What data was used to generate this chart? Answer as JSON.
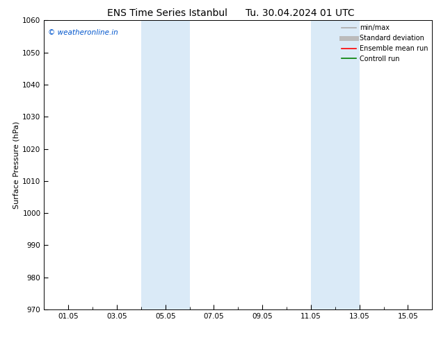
{
  "title_left": "ENS Time Series Istanbul",
  "title_right": "Tu. 30.04.2024 01 UTC",
  "ylabel": "Surface Pressure (hPa)",
  "ylim": [
    970,
    1060
  ],
  "yticks": [
    970,
    980,
    990,
    1000,
    1010,
    1020,
    1030,
    1040,
    1050,
    1060
  ],
  "shaded_regions": [
    {
      "xmin_day": 4.0,
      "xmax_day": 6.0
    },
    {
      "xmin_day": 11.0,
      "xmax_day": 13.0
    }
  ],
  "shaded_color": "#daeaf7",
  "background_color": "#ffffff",
  "watermark_text": "© weatheronline.in",
  "watermark_color": "#0055cc",
  "legend_entries": [
    {
      "label": "min/max",
      "color": "#aaaaaa",
      "lw": 1.2,
      "style": "solid"
    },
    {
      "label": "Standard deviation",
      "color": "#bbbbbb",
      "lw": 5,
      "style": "solid"
    },
    {
      "label": "Ensemble mean run",
      "color": "#ff0000",
      "lw": 1.2,
      "style": "solid"
    },
    {
      "label": "Controll run",
      "color": "#008000",
      "lw": 1.2,
      "style": "solid"
    }
  ],
  "xtick_labels": [
    "01.05",
    "03.05",
    "05.05",
    "07.05",
    "09.05",
    "11.05",
    "13.05",
    "15.05"
  ],
  "xtick_day_positions": [
    1,
    3,
    5,
    7,
    9,
    11,
    13,
    15
  ],
  "xstart_day": 0,
  "xend_day": 16,
  "tick_fontsize": 7.5,
  "label_fontsize": 8,
  "title_fontsize": 10,
  "figsize": [
    6.34,
    4.9
  ],
  "dpi": 100
}
